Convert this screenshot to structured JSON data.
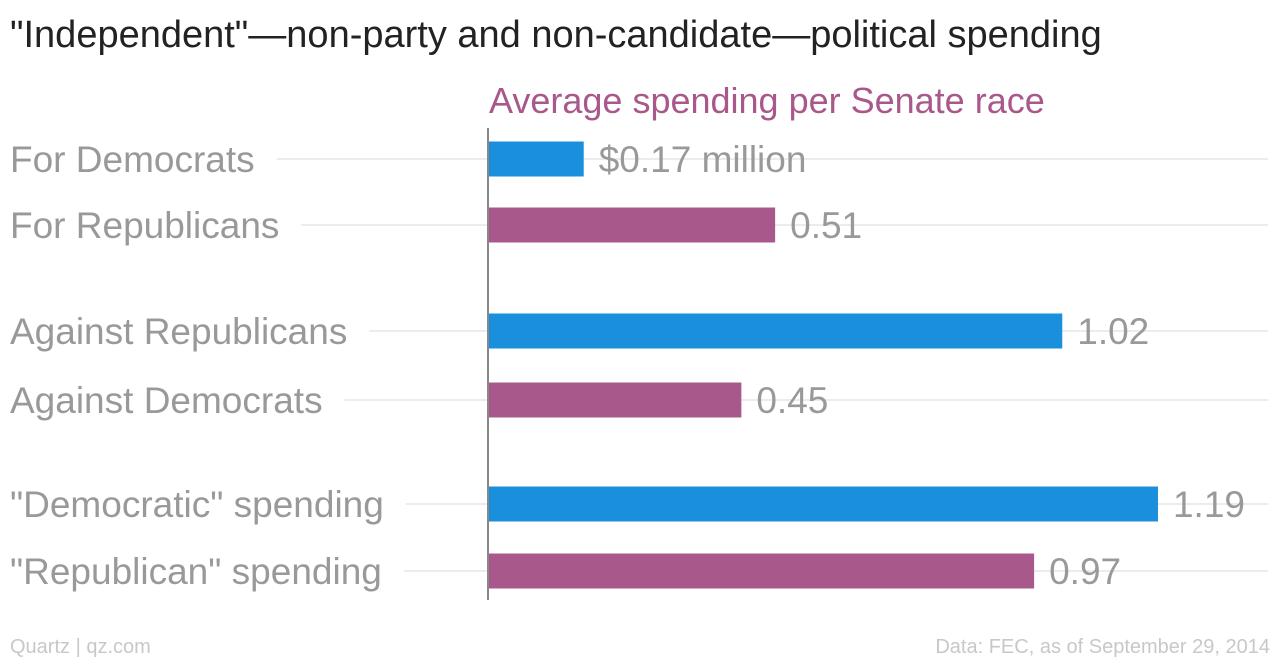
{
  "title": "\"Independent\"—non-party and non-candidate—political spending",
  "subtitle": "Average spending per Senate race",
  "footer": {
    "source_left": "Quartz | qz.com",
    "source_right": "Data: FEC, as of September 29, 2014"
  },
  "colors": {
    "democratic": "#1a8fdc",
    "republican": "#a8588a",
    "label_text": "#999999",
    "subtitle": "#a8588a",
    "gridline": "#ececec",
    "axis": "#888888"
  },
  "chart_data": {
    "type": "bar",
    "orientation": "horizontal",
    "title": "\"Independent\"—non-party and non-candidate—political spending",
    "subtitle": "Average spending per Senate race",
    "categories": [
      "For Democrats",
      "For Republicans",
      "Against Republicans",
      "Against Democrats",
      "\"Democratic\" spending",
      "\"Republican\" spending"
    ],
    "values": [
      0.17,
      0.51,
      1.02,
      0.45,
      1.19,
      0.97
    ],
    "value_labels": [
      "$0.17 million",
      "0.51",
      "1.02",
      "0.45",
      "1.19",
      "0.97"
    ],
    "bar_colors": [
      "#1a8fdc",
      "#a8588a",
      "#1a8fdc",
      "#a8588a",
      "#1a8fdc",
      "#a8588a"
    ],
    "groups": [
      [
        0,
        1
      ],
      [
        2,
        3
      ],
      [
        4,
        5
      ]
    ],
    "xlim": [
      0,
      1.4
    ],
    "unit": "$ million",
    "grid": true
  }
}
